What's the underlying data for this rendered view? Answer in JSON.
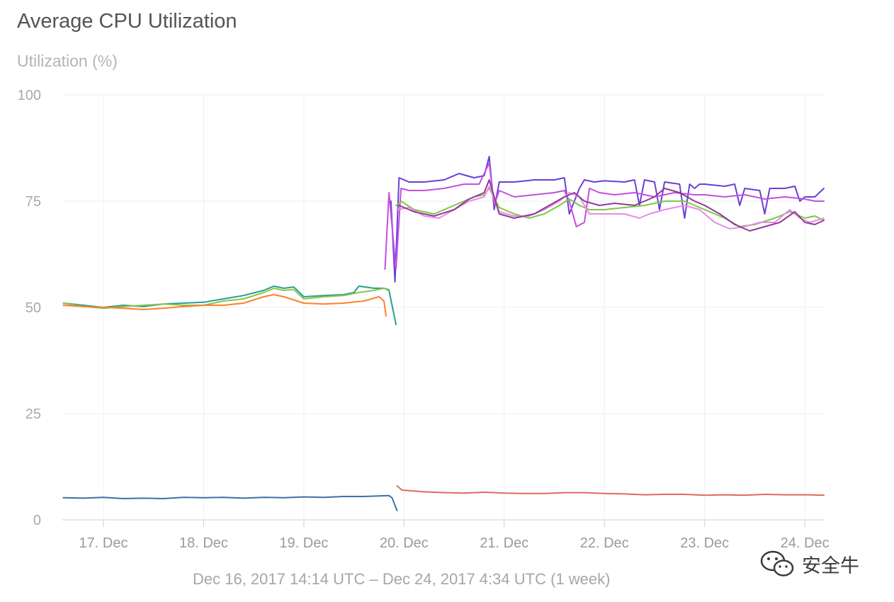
{
  "chart_data": {
    "type": "line",
    "title": "Average CPU Utilization",
    "ylabel": "Utilization (%)",
    "ylim": [
      0,
      100
    ],
    "yticks": [
      "100",
      "75",
      "50",
      "25",
      "0"
    ],
    "xticks": [
      "17. Dec",
      "18. Dec",
      "19. Dec",
      "20. Dec",
      "21. Dec",
      "22. Dec",
      "23. Dec",
      "24. Dec"
    ],
    "x_range_days": [
      16.59,
      24.19
    ],
    "grid": true,
    "legend": "none",
    "range_label": "Dec 16, 2017 14:14 UTC – Dec 24, 2017 4:34 UTC (1 week)",
    "series": [
      {
        "color": "#2a9d8f",
        "points": [
          [
            16.6,
            51
          ],
          [
            16.8,
            50.5
          ],
          [
            17.0,
            50
          ],
          [
            17.2,
            50.5
          ],
          [
            17.4,
            50.2
          ],
          [
            17.6,
            50.8
          ],
          [
            17.8,
            51
          ],
          [
            18.0,
            51.2
          ],
          [
            18.2,
            52
          ],
          [
            18.4,
            52.8
          ],
          [
            18.6,
            54
          ],
          [
            18.7,
            55
          ],
          [
            18.8,
            54.5
          ],
          [
            18.9,
            54.8
          ],
          [
            19.0,
            52.5
          ],
          [
            19.2,
            52.8
          ],
          [
            19.4,
            53
          ],
          [
            19.5,
            53.5
          ],
          [
            19.55,
            55
          ],
          [
            19.7,
            54.5
          ],
          [
            19.8,
            54.5
          ],
          [
            19.85,
            54
          ],
          [
            19.92,
            46
          ]
        ]
      },
      {
        "color": "#8bc34a",
        "points": [
          [
            16.6,
            51
          ],
          [
            16.8,
            50.2
          ],
          [
            17.0,
            49.8
          ],
          [
            17.2,
            50.2
          ],
          [
            17.4,
            50.5
          ],
          [
            17.6,
            50.8
          ],
          [
            17.8,
            50.5
          ],
          [
            18.0,
            50.5
          ],
          [
            18.2,
            51.5
          ],
          [
            18.4,
            52
          ],
          [
            18.6,
            53.5
          ],
          [
            18.7,
            54.5
          ],
          [
            18.8,
            54
          ],
          [
            18.9,
            54.2
          ],
          [
            19.0,
            52
          ],
          [
            19.2,
            52.5
          ],
          [
            19.4,
            52.8
          ],
          [
            19.55,
            53.5
          ],
          [
            19.7,
            54
          ],
          [
            19.8,
            54.5
          ],
          [
            19.85,
            54.2
          ]
        ]
      },
      {
        "color": "#ff7f2a",
        "points": [
          [
            16.6,
            50.5
          ],
          [
            16.8,
            50.2
          ],
          [
            17.0,
            50
          ],
          [
            17.2,
            49.8
          ],
          [
            17.4,
            49.5
          ],
          [
            17.6,
            49.8
          ],
          [
            17.8,
            50.2
          ],
          [
            18.0,
            50.5
          ],
          [
            18.2,
            50.5
          ],
          [
            18.4,
            51
          ],
          [
            18.6,
            52.5
          ],
          [
            18.7,
            53
          ],
          [
            18.8,
            52.5
          ],
          [
            19.0,
            51
          ],
          [
            19.2,
            50.8
          ],
          [
            19.4,
            51
          ],
          [
            19.6,
            51.5
          ],
          [
            19.75,
            52.5
          ],
          [
            19.8,
            51.5
          ],
          [
            19.82,
            48
          ]
        ]
      },
      {
        "color": "#3f6fa8",
        "points": [
          [
            16.6,
            5.2
          ],
          [
            16.8,
            5.1
          ],
          [
            17.0,
            5.3
          ],
          [
            17.2,
            5.0
          ],
          [
            17.4,
            5.1
          ],
          [
            17.6,
            5.0
          ],
          [
            17.8,
            5.3
          ],
          [
            18.0,
            5.2
          ],
          [
            18.2,
            5.3
          ],
          [
            18.4,
            5.1
          ],
          [
            18.6,
            5.3
          ],
          [
            18.8,
            5.2
          ],
          [
            19.0,
            5.4
          ],
          [
            19.2,
            5.3
          ],
          [
            19.4,
            5.5
          ],
          [
            19.6,
            5.5
          ],
          [
            19.85,
            5.7
          ],
          [
            19.88,
            5.2
          ],
          [
            19.93,
            2.2
          ]
        ]
      },
      {
        "color": "#e06a5e",
        "points": [
          [
            19.93,
            8
          ],
          [
            19.98,
            7
          ],
          [
            20.2,
            6.6
          ],
          [
            20.4,
            6.4
          ],
          [
            20.6,
            6.3
          ],
          [
            20.8,
            6.5
          ],
          [
            21.0,
            6.3
          ],
          [
            21.2,
            6.2
          ],
          [
            21.4,
            6.2
          ],
          [
            21.6,
            6.4
          ],
          [
            21.8,
            6.4
          ],
          [
            22.0,
            6.2
          ],
          [
            22.2,
            6.1
          ],
          [
            22.4,
            5.9
          ],
          [
            22.6,
            6.0
          ],
          [
            22.8,
            6.0
          ],
          [
            23.0,
            5.8
          ],
          [
            23.2,
            5.9
          ],
          [
            23.4,
            5.8
          ],
          [
            23.6,
            6.0
          ],
          [
            23.8,
            5.9
          ],
          [
            24.0,
            5.9
          ],
          [
            24.19,
            5.8
          ]
        ]
      },
      {
        "color": "#6a3fd6",
        "points": [
          [
            19.87,
            75
          ],
          [
            19.91,
            56
          ],
          [
            19.95,
            80.5
          ],
          [
            20.05,
            79.5
          ],
          [
            20.2,
            79.5
          ],
          [
            20.4,
            80
          ],
          [
            20.55,
            81.5
          ],
          [
            20.7,
            80.5
          ],
          [
            20.8,
            81
          ],
          [
            20.85,
            85.5
          ],
          [
            20.9,
            73
          ],
          [
            20.95,
            79.5
          ],
          [
            21.1,
            79.5
          ],
          [
            21.3,
            80
          ],
          [
            21.5,
            80
          ],
          [
            21.6,
            80.5
          ],
          [
            21.65,
            72
          ],
          [
            21.75,
            78
          ],
          [
            21.8,
            80
          ],
          [
            21.9,
            79.5
          ],
          [
            22.0,
            79.8
          ],
          [
            22.2,
            79.5
          ],
          [
            22.3,
            80
          ],
          [
            22.35,
            74
          ],
          [
            22.4,
            80
          ],
          [
            22.5,
            79.5
          ],
          [
            22.55,
            73
          ],
          [
            22.6,
            79.5
          ],
          [
            22.75,
            79
          ],
          [
            22.8,
            71
          ],
          [
            22.85,
            79
          ],
          [
            22.9,
            78
          ],
          [
            22.95,
            79
          ],
          [
            23.0,
            79
          ],
          [
            23.2,
            78.5
          ],
          [
            23.3,
            79
          ],
          [
            23.35,
            74
          ],
          [
            23.4,
            78
          ],
          [
            23.55,
            77.5
          ],
          [
            23.6,
            72
          ],
          [
            23.65,
            78
          ],
          [
            23.8,
            78
          ],
          [
            23.9,
            78.5
          ],
          [
            23.95,
            75
          ],
          [
            24.0,
            76
          ],
          [
            24.1,
            76
          ],
          [
            24.19,
            78
          ]
        ]
      },
      {
        "color": "#c24fe0",
        "points": [
          [
            19.81,
            59
          ],
          [
            19.85,
            77
          ],
          [
            19.92,
            59
          ],
          [
            19.97,
            78
          ],
          [
            20.05,
            77.5
          ],
          [
            20.2,
            77.5
          ],
          [
            20.4,
            78
          ],
          [
            20.6,
            79
          ],
          [
            20.75,
            79
          ],
          [
            20.85,
            84
          ],
          [
            20.9,
            74
          ],
          [
            20.95,
            77.5
          ],
          [
            21.1,
            76
          ],
          [
            21.3,
            76.5
          ],
          [
            21.5,
            77
          ],
          [
            21.6,
            77.5
          ],
          [
            21.65,
            75
          ],
          [
            21.72,
            69
          ],
          [
            21.8,
            70
          ],
          [
            21.85,
            78
          ],
          [
            21.95,
            77
          ],
          [
            22.1,
            76.5
          ],
          [
            22.3,
            77
          ],
          [
            22.4,
            76.5
          ],
          [
            22.5,
            76
          ],
          [
            22.6,
            76.5
          ],
          [
            22.7,
            77
          ],
          [
            22.9,
            76.5
          ],
          [
            23.0,
            76.5
          ],
          [
            23.2,
            76
          ],
          [
            23.4,
            76.5
          ],
          [
            23.6,
            75.5
          ],
          [
            23.8,
            76
          ],
          [
            24.0,
            75.5
          ],
          [
            24.1,
            75
          ],
          [
            24.19,
            75
          ]
        ]
      },
      {
        "color": "#7ac943",
        "points": [
          [
            19.92,
            74
          ],
          [
            19.97,
            75
          ],
          [
            20.1,
            73
          ],
          [
            20.3,
            72
          ],
          [
            20.5,
            74
          ],
          [
            20.7,
            76
          ],
          [
            20.8,
            76.5
          ],
          [
            20.85,
            78
          ],
          [
            20.95,
            73.5
          ],
          [
            21.1,
            72
          ],
          [
            21.25,
            71
          ],
          [
            21.4,
            72
          ],
          [
            21.55,
            74
          ],
          [
            21.65,
            75.5
          ],
          [
            21.75,
            74
          ],
          [
            21.85,
            73
          ],
          [
            22.0,
            73
          ],
          [
            22.2,
            73.5
          ],
          [
            22.4,
            74
          ],
          [
            22.6,
            75
          ],
          [
            22.8,
            75
          ],
          [
            23.0,
            73
          ],
          [
            23.2,
            71
          ],
          [
            23.35,
            69
          ],
          [
            23.5,
            69.5
          ],
          [
            23.7,
            71
          ],
          [
            23.85,
            72.5
          ],
          [
            24.0,
            71
          ],
          [
            24.1,
            71.5
          ],
          [
            24.19,
            70.5
          ]
        ]
      },
      {
        "color": "#e88be5",
        "points": [
          [
            19.93,
            73
          ],
          [
            20.05,
            73.5
          ],
          [
            20.2,
            71.5
          ],
          [
            20.35,
            71
          ],
          [
            20.5,
            73
          ],
          [
            20.65,
            75
          ],
          [
            20.8,
            76
          ],
          [
            20.85,
            78.5
          ],
          [
            20.95,
            72.5
          ],
          [
            21.1,
            71.5
          ],
          [
            21.25,
            71.5
          ],
          [
            21.4,
            73
          ],
          [
            21.55,
            75
          ],
          [
            21.65,
            77
          ],
          [
            21.75,
            76
          ],
          [
            21.85,
            72
          ],
          [
            22.0,
            72
          ],
          [
            22.2,
            72
          ],
          [
            22.35,
            71
          ],
          [
            22.45,
            72
          ],
          [
            22.6,
            73
          ],
          [
            22.8,
            74
          ],
          [
            22.95,
            73
          ],
          [
            23.1,
            70
          ],
          [
            23.25,
            68.5
          ],
          [
            23.4,
            69
          ],
          [
            23.55,
            70
          ],
          [
            23.7,
            70
          ],
          [
            23.85,
            73
          ],
          [
            23.95,
            71
          ],
          [
            24.05,
            70
          ],
          [
            24.19,
            71
          ]
        ]
      },
      {
        "color": "#8e3b9a",
        "points": [
          [
            19.95,
            74
          ],
          [
            20.1,
            72.5
          ],
          [
            20.3,
            71.5
          ],
          [
            20.5,
            73
          ],
          [
            20.65,
            75.5
          ],
          [
            20.8,
            77
          ],
          [
            20.85,
            80
          ],
          [
            20.95,
            72
          ],
          [
            21.1,
            71
          ],
          [
            21.3,
            72
          ],
          [
            21.45,
            74
          ],
          [
            21.6,
            76
          ],
          [
            21.7,
            77
          ],
          [
            21.8,
            75
          ],
          [
            21.95,
            74
          ],
          [
            22.1,
            74.5
          ],
          [
            22.3,
            74
          ],
          [
            22.5,
            76
          ],
          [
            22.6,
            78
          ],
          [
            22.75,
            77
          ],
          [
            22.9,
            75
          ],
          [
            23.0,
            74
          ],
          [
            23.15,
            72
          ],
          [
            23.3,
            69.5
          ],
          [
            23.45,
            68
          ],
          [
            23.6,
            69
          ],
          [
            23.75,
            70
          ],
          [
            23.9,
            72.5
          ],
          [
            24.0,
            70
          ],
          [
            24.1,
            69.5
          ],
          [
            24.19,
            70.5
          ]
        ]
      }
    ]
  },
  "watermark": {
    "icon": "wechat-icon",
    "text": "安全牛"
  }
}
